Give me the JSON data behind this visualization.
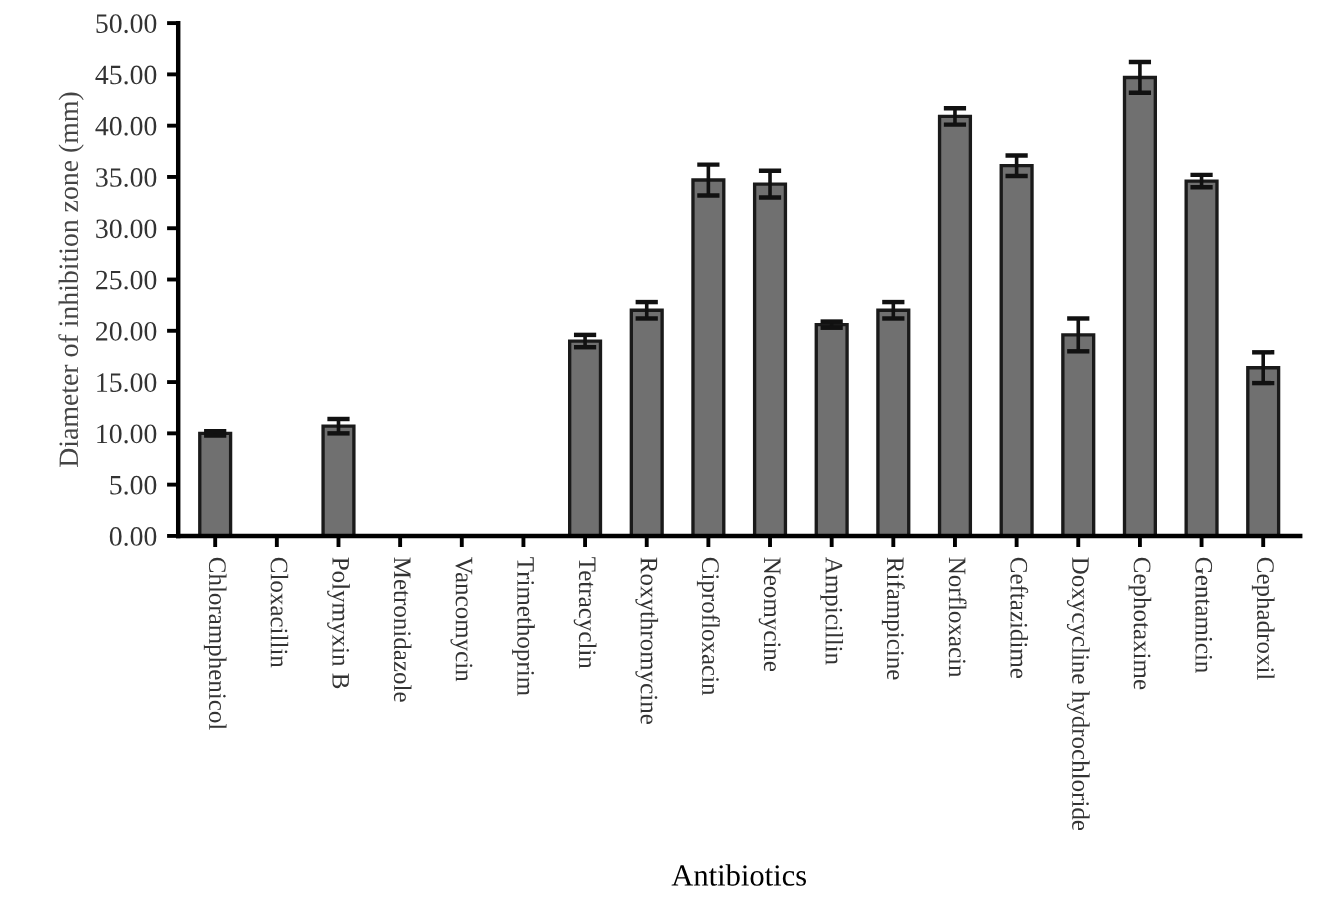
{
  "chart_data": {
    "type": "bar",
    "xlabel": "Antibiotics",
    "ylabel": "Diameter of inhibition zone (mm)",
    "categories": [
      "Chloramphenicol",
      "Cloxacillin",
      "Polymyxin B",
      "Metronidazole",
      "Vancomycin",
      "Trimethoprim",
      "Tetracyclin",
      "Roxythromycine",
      "Ciprofloxacin",
      "Neomycine",
      "Ampicillin",
      "Rifampicine",
      "Norfloxacin",
      "Ceftazidime",
      "Doxycycline hydrochloride",
      "Cephotaxime",
      "Gentamicin",
      "Cephadroxil"
    ],
    "values": [
      10.0,
      0,
      10.7,
      0,
      0,
      0,
      19.0,
      22.0,
      34.7,
      34.3,
      20.6,
      22.0,
      40.9,
      36.1,
      19.6,
      44.7,
      34.6,
      16.4
    ],
    "errors": [
      0.2,
      null,
      0.7,
      null,
      null,
      null,
      0.6,
      0.8,
      1.5,
      1.3,
      0.3,
      0.8,
      0.8,
      1.0,
      1.6,
      1.5,
      0.6,
      1.5
    ],
    "color": "#707070",
    "ylim": [
      0,
      50
    ],
    "yticks": [
      {
        "value": 0,
        "label": "0.00"
      },
      {
        "value": 5,
        "label": "5.00"
      },
      {
        "value": 10,
        "label": "10.00"
      },
      {
        "value": 15,
        "label": "15.00"
      },
      {
        "value": 20,
        "label": "20.00"
      },
      {
        "value": 25,
        "label": "25.00"
      },
      {
        "value": 30,
        "label": "30.00"
      },
      {
        "value": 35,
        "label": "35.00"
      },
      {
        "value": 40,
        "label": "40.00"
      },
      {
        "value": 45,
        "label": "45.00"
      },
      {
        "value": 50,
        "label": "50.00"
      }
    ],
    "grid": false,
    "legend": false
  }
}
